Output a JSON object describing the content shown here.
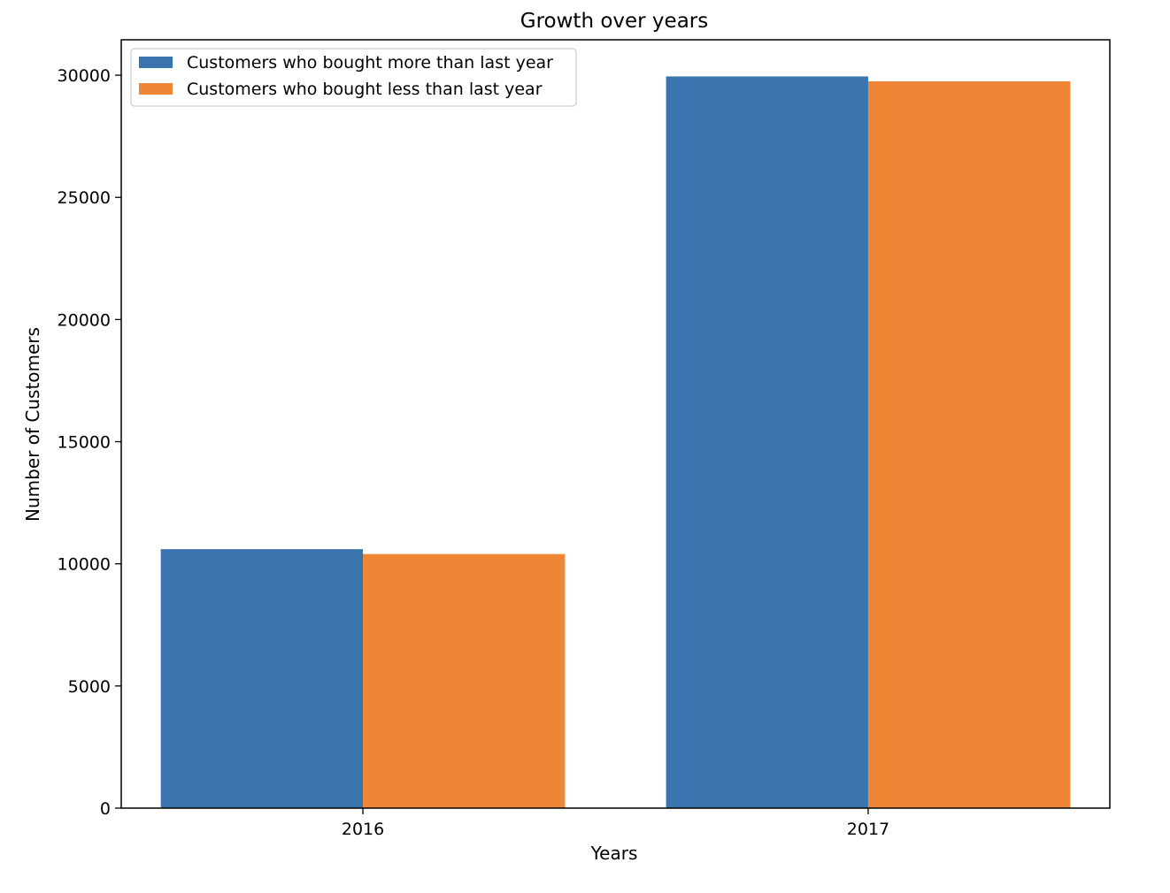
{
  "chart_data": {
    "type": "bar",
    "title": "Growth over years",
    "xlabel": "Years",
    "ylabel": "Number of Customers",
    "categories": [
      "2016",
      "2017"
    ],
    "series": [
      {
        "name": "Customers who bought more than last year",
        "color": "#3a74ae",
        "values": [
          10600,
          29950
        ]
      },
      {
        "name": "Customers who bought less than last year",
        "color": "#ee8636",
        "values": [
          10400,
          29750
        ]
      }
    ],
    "ylim": [
      0,
      31450
    ],
    "yticks": [
      0,
      5000,
      10000,
      15000,
      20000,
      25000,
      30000
    ],
    "grid": false,
    "legend_position": "upper-left"
  }
}
